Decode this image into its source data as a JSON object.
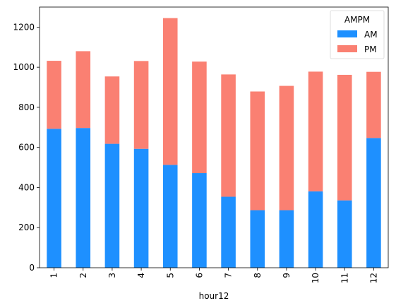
{
  "chart_data": {
    "type": "bar",
    "stacked": true,
    "categories": [
      "1",
      "2",
      "3",
      "4",
      "5",
      "6",
      "7",
      "8",
      "9",
      "10",
      "11",
      "12"
    ],
    "series": [
      {
        "name": "AM",
        "color": "#1e90ff",
        "values": [
          693,
          697,
          618,
          593,
          513,
          472,
          354,
          287,
          287,
          381,
          336,
          647
        ]
      },
      {
        "name": "PM",
        "color": "#fa8072",
        "values": [
          339,
          383,
          336,
          438,
          732,
          556,
          610,
          592,
          620,
          597,
          626,
          330
        ]
      }
    ],
    "title": "",
    "xlabel": "hour12",
    "ylabel": "",
    "ylim": [
      0,
      1300
    ],
    "yticks": [
      0,
      200,
      400,
      600,
      800,
      1000,
      1200
    ],
    "grid": false,
    "legend": {
      "title": "AMPM",
      "placement": "top-right"
    }
  }
}
